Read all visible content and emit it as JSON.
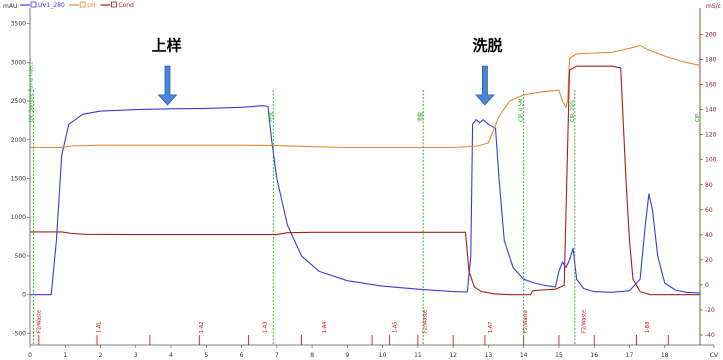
{
  "chart_data": {
    "type": "line",
    "x_axis": {
      "label": "",
      "range": [
        0,
        19
      ],
      "ticks": [
        0,
        1,
        2,
        3,
        4,
        5,
        6,
        7,
        8,
        9,
        10,
        11,
        12,
        13,
        14,
        15,
        16,
        17,
        18,
        19
      ],
      "tick_labels": [
        "0",
        "1",
        "2",
        "3",
        "4",
        "5",
        "6",
        "7",
        "8",
        "9",
        "10",
        "11",
        "12",
        "13",
        "14",
        "15",
        "16",
        "17",
        "18",
        "CV"
      ]
    },
    "y_axis_left": {
      "unit": "mAU",
      "range": [
        -650,
        3650
      ],
      "ticks": [
        -500,
        0,
        500,
        1000,
        1500,
        2000,
        2500,
        3000,
        3500
      ],
      "tick_labels": [
        "-500",
        "0",
        "500",
        "1000",
        "1500",
        "2000",
        "2500",
        "3000",
        "3500"
      ]
    },
    "y_axis_right": {
      "unit": "mS/c",
      "range": [
        -48,
        218
      ],
      "ticks": [
        -40,
        -20,
        0,
        20,
        40,
        60,
        80,
        100,
        120,
        140,
        160,
        180,
        200
      ],
      "tick_labels": [
        "-40",
        "-20",
        "0",
        "20",
        "40",
        "60",
        "80",
        "100",
        "120",
        "140",
        "160",
        "180",
        "200"
      ]
    },
    "grid": false,
    "legend_position": "top-left",
    "legend": [
      {
        "name": "UV1_280",
        "color": "#3b3bdb"
      },
      {
        "name": "pH",
        "color": "#e08a3c"
      },
      {
        "name": "Cond",
        "color": "#a02020"
      }
    ],
    "series": [
      {
        "name": "UV1_280",
        "axis": "left",
        "color": "#3b3bdb",
        "points": [
          [
            0,
            0
          ],
          [
            0.6,
            0
          ],
          [
            0.75,
            700
          ],
          [
            0.9,
            1800
          ],
          [
            1.1,
            2200
          ],
          [
            1.5,
            2330
          ],
          [
            2,
            2370
          ],
          [
            3,
            2390
          ],
          [
            4,
            2400
          ],
          [
            5,
            2405
          ],
          [
            6,
            2420
          ],
          [
            6.6,
            2440
          ],
          [
            6.75,
            2430
          ],
          [
            6.85,
            2000
          ],
          [
            7,
            1500
          ],
          [
            7.3,
            900
          ],
          [
            7.7,
            500
          ],
          [
            8.2,
            300
          ],
          [
            9,
            180
          ],
          [
            10,
            110
          ],
          [
            11,
            70
          ],
          [
            12,
            40
          ],
          [
            12.4,
            35
          ],
          [
            12.5,
            500
          ],
          [
            12.55,
            2200
          ],
          [
            12.65,
            2260
          ],
          [
            12.75,
            2220
          ],
          [
            12.85,
            2260
          ],
          [
            13,
            2200
          ],
          [
            13.2,
            2150
          ],
          [
            13.3,
            1500
          ],
          [
            13.45,
            700
          ],
          [
            13.7,
            350
          ],
          [
            14,
            200
          ],
          [
            14.3,
            150
          ],
          [
            14.6,
            120
          ],
          [
            14.9,
            100
          ],
          [
            15,
            300
          ],
          [
            15.1,
            420
          ],
          [
            15.2,
            350
          ],
          [
            15.3,
            450
          ],
          [
            15.4,
            600
          ],
          [
            15.5,
            200
          ],
          [
            15.7,
            80
          ],
          [
            16,
            40
          ],
          [
            16.5,
            30
          ],
          [
            17,
            50
          ],
          [
            17.3,
            200
          ],
          [
            17.45,
            900
          ],
          [
            17.55,
            1300
          ],
          [
            17.65,
            1100
          ],
          [
            17.8,
            500
          ],
          [
            18,
            150
          ],
          [
            18.3,
            60
          ],
          [
            18.6,
            30
          ],
          [
            19,
            20
          ]
        ]
      },
      {
        "name": "pH",
        "axis": "left",
        "color": "#e08a3c",
        "points": [
          [
            0,
            1900
          ],
          [
            0.9,
            1900
          ],
          [
            1.2,
            1920
          ],
          [
            2,
            1930
          ],
          [
            3,
            1930
          ],
          [
            4,
            1930
          ],
          [
            5,
            1930
          ],
          [
            6,
            1930
          ],
          [
            7,
            1925
          ],
          [
            8,
            1910
          ],
          [
            9,
            1900
          ],
          [
            10,
            1900
          ],
          [
            11,
            1900
          ],
          [
            12,
            1900
          ],
          [
            12.7,
            1920
          ],
          [
            13,
            1960
          ],
          [
            13.3,
            2300
          ],
          [
            13.6,
            2500
          ],
          [
            14,
            2580
          ],
          [
            14.5,
            2620
          ],
          [
            15,
            2640
          ],
          [
            15.1,
            2500
          ],
          [
            15.2,
            2420
          ],
          [
            15.25,
            2520
          ],
          [
            15.3,
            3050
          ],
          [
            15.5,
            3110
          ],
          [
            16,
            3120
          ],
          [
            16.5,
            3130
          ],
          [
            17,
            3180
          ],
          [
            17.3,
            3220
          ],
          [
            17.5,
            3170
          ],
          [
            18,
            3080
          ],
          [
            18.5,
            3010
          ],
          [
            19,
            2960
          ]
        ]
      },
      {
        "name": "Cond",
        "axis": "left",
        "color": "#a02020",
        "points": [
          [
            0,
            810
          ],
          [
            0.9,
            810
          ],
          [
            1.2,
            790
          ],
          [
            1.6,
            780
          ],
          [
            3,
            775
          ],
          [
            5,
            775
          ],
          [
            6.5,
            775
          ],
          [
            7,
            775
          ],
          [
            7.3,
            800
          ],
          [
            8,
            805
          ],
          [
            9,
            805
          ],
          [
            10,
            805
          ],
          [
            11,
            805
          ],
          [
            12,
            805
          ],
          [
            12.35,
            805
          ],
          [
            12.45,
            300
          ],
          [
            12.6,
            100
          ],
          [
            12.8,
            40
          ],
          [
            13.2,
            10
          ],
          [
            13.6,
            0
          ],
          [
            14,
            0
          ],
          [
            14.2,
            0
          ],
          [
            14.25,
            50
          ],
          [
            14.5,
            60
          ],
          [
            14.9,
            70
          ],
          [
            15.05,
            100
          ],
          [
            15.15,
            120
          ],
          [
            15.3,
            2900
          ],
          [
            15.5,
            2950
          ],
          [
            16,
            2950
          ],
          [
            16.5,
            2950
          ],
          [
            16.75,
            2930
          ],
          [
            16.9,
            1500
          ],
          [
            17,
            700
          ],
          [
            17.1,
            200
          ],
          [
            17.3,
            40
          ],
          [
            17.6,
            0
          ],
          [
            18,
            0
          ],
          [
            19,
            0
          ]
        ]
      }
    ],
    "annotations": [
      {
        "text": "上样",
        "x": 3.45,
        "y": 3150
      },
      {
        "text": "洗脱",
        "x": 12.55,
        "y": 3150
      }
    ],
    "arrows": [
      {
        "x": 3.9,
        "y_from": 2950,
        "y_to": 2450
      },
      {
        "x": 12.9,
        "y_from": 2950,
        "y_to": 2450
      }
    ],
    "injection_marks": [
      {
        "x": 0.1,
        "label": "UV: Sample Pump Inject"
      },
      {
        "x": 6.9,
        "label": "冲洗"
      },
      {
        "x": 11.15,
        "label": "洗脱"
      },
      {
        "x": 14.0,
        "label": "CIP, 0.5M"
      },
      {
        "x": 15.45,
        "label": "CIP, 20%"
      },
      {
        "x": 19.0,
        "label": "CIP"
      }
    ],
    "fractions": [
      {
        "x": 0.3,
        "label": "F2/Waste"
      },
      {
        "x": 2.0,
        "label": "1-A1"
      },
      {
        "x": 4.9,
        "label": "1-A2"
      },
      {
        "x": 6.7,
        "label": "1-A3"
      },
      {
        "x": 8.4,
        "label": "1-A4"
      },
      {
        "x": 10.4,
        "label": "1-A5"
      },
      {
        "x": 11.25,
        "label": "F2/Waste"
      },
      {
        "x": 13.1,
        "label": "1-A7"
      },
      {
        "x": 14.1,
        "label": "F2/Waste"
      },
      {
        "x": 15.75,
        "label": "F2/Waste"
      },
      {
        "x": 17.55,
        "label": "1-B8"
      }
    ],
    "fraction_ticks": [
      0.25,
      1.9,
      3.4,
      4.8,
      6.2,
      7.7,
      9.7,
      10.2,
      11.0,
      12.0,
      12.9,
      14.0,
      15.0,
      16.0,
      17.2,
      18.1
    ]
  }
}
